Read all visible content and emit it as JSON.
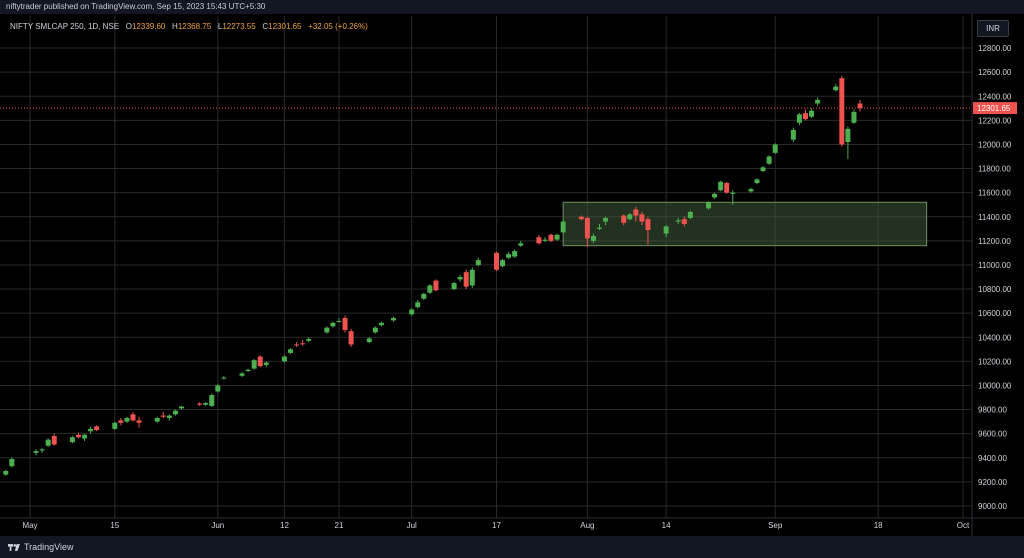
{
  "header": {
    "published_text": "niftytrader published on TradingView.com, Sep 15, 2023 15:43 UTC+5:30"
  },
  "legend": {
    "symbol": "NIFTY SMLCAP 250, 1D, NSE",
    "open_label": "O",
    "open": "12339.60",
    "high_label": "H",
    "high": "12368.75",
    "low_label": "L",
    "low": "12273.55",
    "close_label": "C",
    "close": "12301.65",
    "change": "+32.05 (+0.26%)"
  },
  "currency_button": "INR",
  "footer": {
    "brand": "TradingView"
  },
  "colors": {
    "up": "#26a69a",
    "up_green": "#4caf50",
    "down": "#ef5350",
    "grid": "#2a2a2a",
    "zone": "#3e5a3a",
    "price_line": "#ef5350"
  },
  "chart_data": {
    "type": "candlestick",
    "current_price_label": "12301.65",
    "current_price": 12301.65,
    "ylim": [
      8900,
      12900
    ],
    "yticks": [
      "12800.00",
      "12600.00",
      "12400.00",
      "12200.00",
      "12000.00",
      "11800.00",
      "11600.00",
      "11400.00",
      "11200.00",
      "11000.00",
      "10800.00",
      "10600.00",
      "10400.00",
      "10200.00",
      "10000.00",
      "9800.00",
      "9600.00",
      "9400.00",
      "9200.00",
      "9000.00"
    ],
    "xticks": [
      {
        "label": "May",
        "date": "2023-05-01"
      },
      {
        "label": "15",
        "date": "2023-05-15"
      },
      {
        "label": "Jun",
        "date": "2023-06-01"
      },
      {
        "label": "12",
        "date": "2023-06-12"
      },
      {
        "label": "21",
        "date": "2023-06-21"
      },
      {
        "label": "Jul",
        "date": "2023-07-03"
      },
      {
        "label": "17",
        "date": "2023-07-17"
      },
      {
        "label": "Aug",
        "date": "2023-08-01"
      },
      {
        "label": "14",
        "date": "2023-08-14"
      },
      {
        "label": "Sep",
        "date": "2023-09-01"
      },
      {
        "label": "18",
        "date": "2023-09-18"
      },
      {
        "label": "Oct",
        "date": "2023-10-02"
      }
    ],
    "zone": {
      "from_date": "2023-07-28",
      "to_date": "2023-09-26",
      "low": 11160,
      "high": 11520
    },
    "candles": [
      {
        "d": "2023-04-27",
        "o": 9260,
        "h": 9300,
        "l": 9250,
        "c": 9290
      },
      {
        "d": "2023-04-28",
        "o": 9330,
        "h": 9400,
        "l": 9320,
        "c": 9390
      },
      {
        "d": "2023-05-02",
        "o": 9440,
        "h": 9470,
        "l": 9420,
        "c": 9455
      },
      {
        "d": "2023-05-03",
        "o": 9460,
        "h": 9480,
        "l": 9440,
        "c": 9470
      },
      {
        "d": "2023-05-04",
        "o": 9500,
        "h": 9560,
        "l": 9490,
        "c": 9550
      },
      {
        "d": "2023-05-05",
        "o": 9580,
        "h": 9600,
        "l": 9500,
        "c": 9510
      },
      {
        "d": "2023-05-08",
        "o": 9530,
        "h": 9580,
        "l": 9520,
        "c": 9570
      },
      {
        "d": "2023-05-09",
        "o": 9590,
        "h": 9610,
        "l": 9560,
        "c": 9570
      },
      {
        "d": "2023-05-10",
        "o": 9560,
        "h": 9600,
        "l": 9540,
        "c": 9590
      },
      {
        "d": "2023-05-11",
        "o": 9620,
        "h": 9660,
        "l": 9600,
        "c": 9640
      },
      {
        "d": "2023-05-12",
        "o": 9660,
        "h": 9670,
        "l": 9620,
        "c": 9630
      },
      {
        "d": "2023-05-15",
        "o": 9640,
        "h": 9700,
        "l": 9630,
        "c": 9690
      },
      {
        "d": "2023-05-16",
        "o": 9710,
        "h": 9730,
        "l": 9670,
        "c": 9690
      },
      {
        "d": "2023-05-17",
        "o": 9700,
        "h": 9740,
        "l": 9690,
        "c": 9730
      },
      {
        "d": "2023-05-18",
        "o": 9760,
        "h": 9780,
        "l": 9700,
        "c": 9710
      },
      {
        "d": "2023-05-19",
        "o": 9710,
        "h": 9740,
        "l": 9650,
        "c": 9690
      },
      {
        "d": "2023-05-22",
        "o": 9700,
        "h": 9740,
        "l": 9690,
        "c": 9730
      },
      {
        "d": "2023-05-23",
        "o": 9750,
        "h": 9780,
        "l": 9730,
        "c": 9740
      },
      {
        "d": "2023-05-24",
        "o": 9730,
        "h": 9760,
        "l": 9710,
        "c": 9750
      },
      {
        "d": "2023-05-25",
        "o": 9760,
        "h": 9800,
        "l": 9750,
        "c": 9790
      },
      {
        "d": "2023-05-26",
        "o": 9810,
        "h": 9830,
        "l": 9800,
        "c": 9825
      },
      {
        "d": "2023-05-29",
        "o": 9850,
        "h": 9860,
        "l": 9830,
        "c": 9840
      },
      {
        "d": "2023-05-30",
        "o": 9840,
        "h": 9860,
        "l": 9830,
        "c": 9855
      },
      {
        "d": "2023-05-31",
        "o": 9830,
        "h": 9930,
        "l": 9820,
        "c": 9920
      },
      {
        "d": "2023-06-01",
        "o": 9950,
        "h": 10010,
        "l": 9940,
        "c": 10000
      },
      {
        "d": "2023-06-02",
        "o": 10060,
        "h": 10080,
        "l": 10050,
        "c": 10065
      },
      {
        "d": "2023-06-05",
        "o": 10080,
        "h": 10110,
        "l": 10070,
        "c": 10100
      },
      {
        "d": "2023-06-06",
        "o": 10120,
        "h": 10140,
        "l": 10110,
        "c": 10130
      },
      {
        "d": "2023-06-07",
        "o": 10140,
        "h": 10220,
        "l": 10130,
        "c": 10210
      },
      {
        "d": "2023-06-08",
        "o": 10240,
        "h": 10250,
        "l": 10150,
        "c": 10160
      },
      {
        "d": "2023-06-09",
        "o": 10170,
        "h": 10200,
        "l": 10150,
        "c": 10190
      },
      {
        "d": "2023-06-12",
        "o": 10200,
        "h": 10250,
        "l": 10190,
        "c": 10240
      },
      {
        "d": "2023-06-13",
        "o": 10270,
        "h": 10310,
        "l": 10260,
        "c": 10300
      },
      {
        "d": "2023-06-14",
        "o": 10340,
        "h": 10360,
        "l": 10320,
        "c": 10335
      },
      {
        "d": "2023-06-15",
        "o": 10350,
        "h": 10380,
        "l": 10330,
        "c": 10345
      },
      {
        "d": "2023-06-16",
        "o": 10370,
        "h": 10400,
        "l": 10360,
        "c": 10385
      },
      {
        "d": "2023-06-19",
        "o": 10440,
        "h": 10490,
        "l": 10430,
        "c": 10480
      },
      {
        "d": "2023-06-20",
        "o": 10490,
        "h": 10530,
        "l": 10480,
        "c": 10520
      },
      {
        "d": "2023-06-21",
        "o": 10530,
        "h": 10560,
        "l": 10520,
        "c": 10535
      },
      {
        "d": "2023-06-22",
        "o": 10560,
        "h": 10580,
        "l": 10440,
        "c": 10460
      },
      {
        "d": "2023-06-23",
        "o": 10450,
        "h": 10470,
        "l": 10320,
        "c": 10340
      },
      {
        "d": "2023-06-26",
        "o": 10360,
        "h": 10400,
        "l": 10350,
        "c": 10390
      },
      {
        "d": "2023-06-27",
        "o": 10440,
        "h": 10490,
        "l": 10430,
        "c": 10480
      },
      {
        "d": "2023-06-28",
        "o": 10500,
        "h": 10530,
        "l": 10490,
        "c": 10520
      },
      {
        "d": "2023-06-30",
        "o": 10540,
        "h": 10570,
        "l": 10530,
        "c": 10560
      },
      {
        "d": "2023-07-03",
        "o": 10590,
        "h": 10640,
        "l": 10580,
        "c": 10630
      },
      {
        "d": "2023-07-04",
        "o": 10650,
        "h": 10710,
        "l": 10640,
        "c": 10690
      },
      {
        "d": "2023-07-05",
        "o": 10720,
        "h": 10770,
        "l": 10710,
        "c": 10760
      },
      {
        "d": "2023-07-06",
        "o": 10770,
        "h": 10840,
        "l": 10760,
        "c": 10830
      },
      {
        "d": "2023-07-07",
        "o": 10870,
        "h": 10880,
        "l": 10780,
        "c": 10790
      },
      {
        "d": "2023-07-10",
        "o": 10800,
        "h": 10860,
        "l": 10790,
        "c": 10850
      },
      {
        "d": "2023-07-11",
        "o": 10880,
        "h": 10920,
        "l": 10860,
        "c": 10900
      },
      {
        "d": "2023-07-12",
        "o": 10940,
        "h": 10960,
        "l": 10800,
        "c": 10820
      },
      {
        "d": "2023-07-13",
        "o": 10830,
        "h": 10980,
        "l": 10810,
        "c": 10960
      },
      {
        "d": "2023-07-14",
        "o": 11000,
        "h": 11060,
        "l": 10990,
        "c": 11040
      },
      {
        "d": "2023-07-17",
        "o": 11100,
        "h": 11110,
        "l": 10950,
        "c": 10960
      },
      {
        "d": "2023-07-18",
        "o": 10990,
        "h": 11050,
        "l": 10980,
        "c": 11040
      },
      {
        "d": "2023-07-19",
        "o": 11060,
        "h": 11110,
        "l": 11050,
        "c": 11090
      },
      {
        "d": "2023-07-20",
        "o": 11070,
        "h": 11130,
        "l": 11060,
        "c": 11115
      },
      {
        "d": "2023-07-21",
        "o": 11160,
        "h": 11200,
        "l": 11150,
        "c": 11180
      },
      {
        "d": "2023-07-24",
        "o": 11230,
        "h": 11250,
        "l": 11170,
        "c": 11180
      },
      {
        "d": "2023-07-25",
        "o": 11200,
        "h": 11230,
        "l": 11190,
        "c": 11210
      },
      {
        "d": "2023-07-26",
        "o": 11250,
        "h": 11260,
        "l": 11190,
        "c": 11200
      },
      {
        "d": "2023-07-27",
        "o": 11210,
        "h": 11260,
        "l": 11200,
        "c": 11250
      },
      {
        "d": "2023-07-28",
        "o": 11270,
        "h": 11380,
        "l": 11260,
        "c": 11360
      },
      {
        "d": "2023-07-31",
        "o": 11400,
        "h": 11410,
        "l": 11370,
        "c": 11380
      },
      {
        "d": "2023-08-01",
        "o": 11390,
        "h": 11400,
        "l": 11150,
        "c": 11220
      },
      {
        "d": "2023-08-02",
        "o": 11200,
        "h": 11260,
        "l": 11180,
        "c": 11240
      },
      {
        "d": "2023-08-03",
        "o": 11300,
        "h": 11340,
        "l": 11290,
        "c": 11310
      },
      {
        "d": "2023-08-04",
        "o": 11360,
        "h": 11400,
        "l": 11330,
        "c": 11390
      },
      {
        "d": "2023-08-07",
        "o": 11410,
        "h": 11420,
        "l": 11330,
        "c": 11350
      },
      {
        "d": "2023-08-08",
        "o": 11380,
        "h": 11430,
        "l": 11370,
        "c": 11420
      },
      {
        "d": "2023-08-09",
        "o": 11460,
        "h": 11480,
        "l": 11360,
        "c": 11410
      },
      {
        "d": "2023-08-10",
        "o": 11420,
        "h": 11440,
        "l": 11330,
        "c": 11360
      },
      {
        "d": "2023-08-11",
        "o": 11380,
        "h": 11400,
        "l": 11170,
        "c": 11290
      },
      {
        "d": "2023-08-14",
        "o": 11260,
        "h": 11330,
        "l": 11230,
        "c": 11320
      },
      {
        "d": "2023-08-16",
        "o": 11360,
        "h": 11390,
        "l": 11340,
        "c": 11370
      },
      {
        "d": "2023-08-17",
        "o": 11380,
        "h": 11400,
        "l": 11320,
        "c": 11340
      },
      {
        "d": "2023-08-18",
        "o": 11390,
        "h": 11450,
        "l": 11380,
        "c": 11440
      },
      {
        "d": "2023-08-21",
        "o": 11470,
        "h": 11530,
        "l": 11460,
        "c": 11520
      },
      {
        "d": "2023-08-22",
        "o": 11560,
        "h": 11600,
        "l": 11550,
        "c": 11590
      },
      {
        "d": "2023-08-23",
        "o": 11620,
        "h": 11700,
        "l": 11610,
        "c": 11690
      },
      {
        "d": "2023-08-24",
        "o": 11680,
        "h": 11690,
        "l": 11590,
        "c": 11600
      },
      {
        "d": "2023-08-25",
        "o": 11590,
        "h": 11620,
        "l": 11500,
        "c": 11600
      },
      {
        "d": "2023-08-28",
        "o": 11610,
        "h": 11640,
        "l": 11600,
        "c": 11630
      },
      {
        "d": "2023-08-29",
        "o": 11680,
        "h": 11720,
        "l": 11670,
        "c": 11710
      },
      {
        "d": "2023-08-30",
        "o": 11780,
        "h": 11820,
        "l": 11770,
        "c": 11810
      },
      {
        "d": "2023-08-31",
        "o": 11840,
        "h": 11910,
        "l": 11830,
        "c": 11900
      },
      {
        "d": "2023-09-01",
        "o": 11930,
        "h": 12010,
        "l": 11920,
        "c": 12000
      },
      {
        "d": "2023-09-04",
        "o": 12040,
        "h": 12140,
        "l": 12020,
        "c": 12120
      },
      {
        "d": "2023-09-05",
        "o": 12180,
        "h": 12260,
        "l": 12160,
        "c": 12250
      },
      {
        "d": "2023-09-06",
        "o": 12260,
        "h": 12290,
        "l": 12200,
        "c": 12210
      },
      {
        "d": "2023-09-07",
        "o": 12230,
        "h": 12300,
        "l": 12220,
        "c": 12280
      },
      {
        "d": "2023-09-08",
        "o": 12340,
        "h": 12390,
        "l": 12320,
        "c": 12370
      },
      {
        "d": "2023-09-11",
        "o": 12450,
        "h": 12500,
        "l": 12440,
        "c": 12480
      },
      {
        "d": "2023-09-12",
        "o": 12550,
        "h": 12570,
        "l": 11980,
        "c": 12000
      },
      {
        "d": "2023-09-13",
        "o": 12020,
        "h": 12150,
        "l": 11880,
        "c": 12130
      },
      {
        "d": "2023-09-14",
        "o": 12180,
        "h": 12290,
        "l": 12170,
        "c": 12270
      },
      {
        "d": "2023-09-15",
        "o": 12339.6,
        "h": 12368.75,
        "l": 12273.55,
        "c": 12301.65
      }
    ]
  }
}
